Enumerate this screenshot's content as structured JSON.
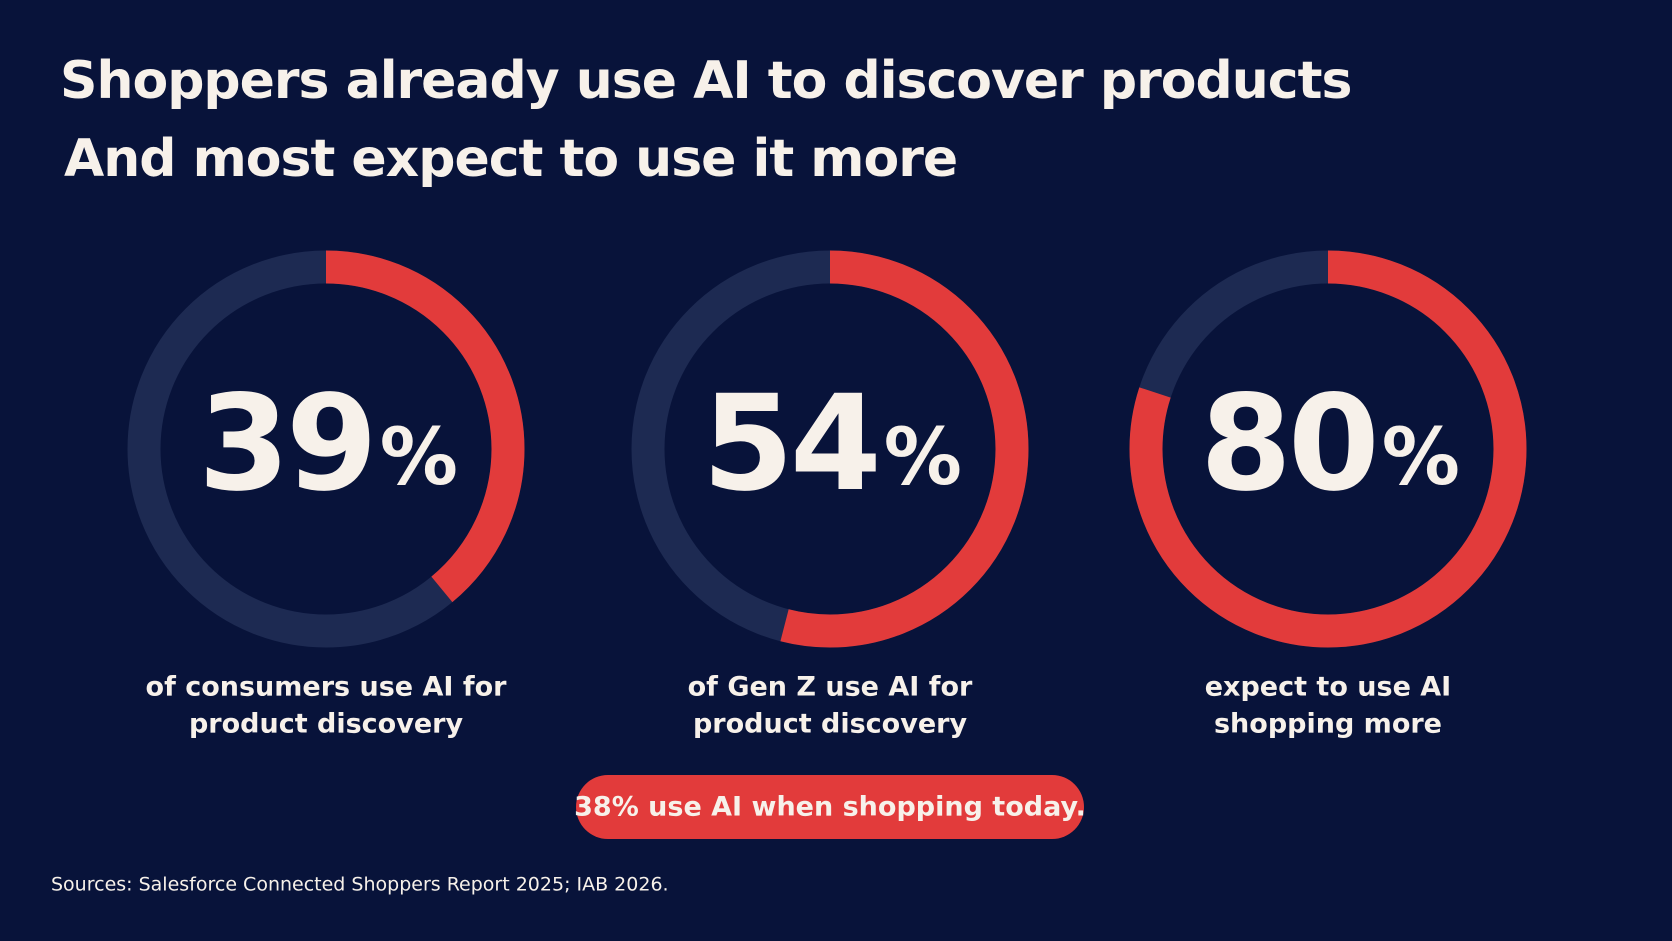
{
  "title": [
    "Shoppers already use AI to discover products",
    "And most expect to use it more"
  ],
  "chart_data": [
    {
      "type": "donut",
      "values": [
        39
      ],
      "value_labels": [
        "39%"
      ],
      "ylim": [
        0,
        100
      ],
      "color": "#e23b3b",
      "track_color": "#1d2a52",
      "caption": [
        "of consumers use AI for",
        "product discovery"
      ]
    },
    {
      "type": "donut",
      "values": [
        54
      ],
      "value_labels": [
        "54%"
      ],
      "ylim": [
        0,
        100
      ],
      "color": "#e23b3b",
      "track_color": "#1d2a52",
      "caption": [
        "of Gen Z use AI for",
        "product discovery"
      ]
    },
    {
      "type": "donut",
      "values": [
        80
      ],
      "value_labels": [
        "80%"
      ],
      "ylim": [
        0,
        100
      ],
      "color": "#e23b3b",
      "track_color": "#1d2a52",
      "caption": [
        "expect to use AI",
        "shopping more"
      ]
    }
  ],
  "callout": "38% use AI when shopping today.",
  "source": "Sources: Salesforce Connected Shoppers Report 2025; IAB 2026."
}
